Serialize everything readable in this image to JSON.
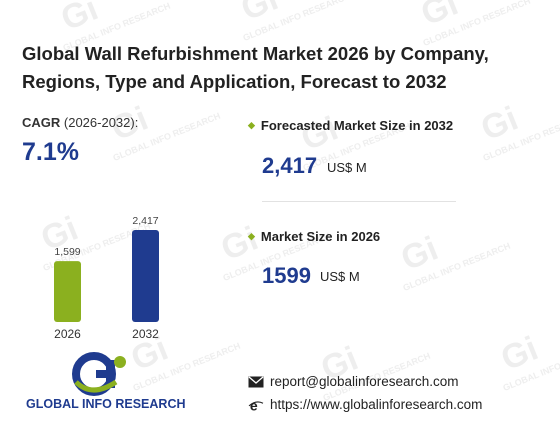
{
  "title": "Global Wall Refurbishment Market 2026 by Company, Regions, Type and Application, Forecast to 2032",
  "cagr": {
    "label_bold": "CAGR",
    "label_period": " (2026-2032):",
    "value": "7.1%"
  },
  "chart_data": {
    "type": "bar",
    "categories": [
      "2026",
      "2032"
    ],
    "values": [
      1599,
      2417
    ],
    "data_labels": [
      "1,599",
      "2,417"
    ],
    "colors": [
      "#8bb01f",
      "#1f3b8f"
    ],
    "title": "",
    "xlabel": "",
    "ylabel": ""
  },
  "forecast": {
    "label": "Forecasted Market Size in 2032",
    "value": "2,417",
    "unit": "US$ M"
  },
  "current": {
    "label": "Market Size in 2026",
    "value": "1599",
    "unit": "US$ M"
  },
  "logo": {
    "text": "GLOBAL INFO RESEARCH"
  },
  "watermark": {
    "text": "GLOBAL INFO RESEARCH"
  },
  "contact": {
    "email": "report@globalinforesearch.com",
    "website": "https://www.globalinforesearch.com",
    "email_icon": "envelope-icon",
    "website_icon": "browser-e-icon"
  },
  "colors": {
    "accent_blue": "#1f3b8f",
    "accent_green": "#8bb01f"
  }
}
